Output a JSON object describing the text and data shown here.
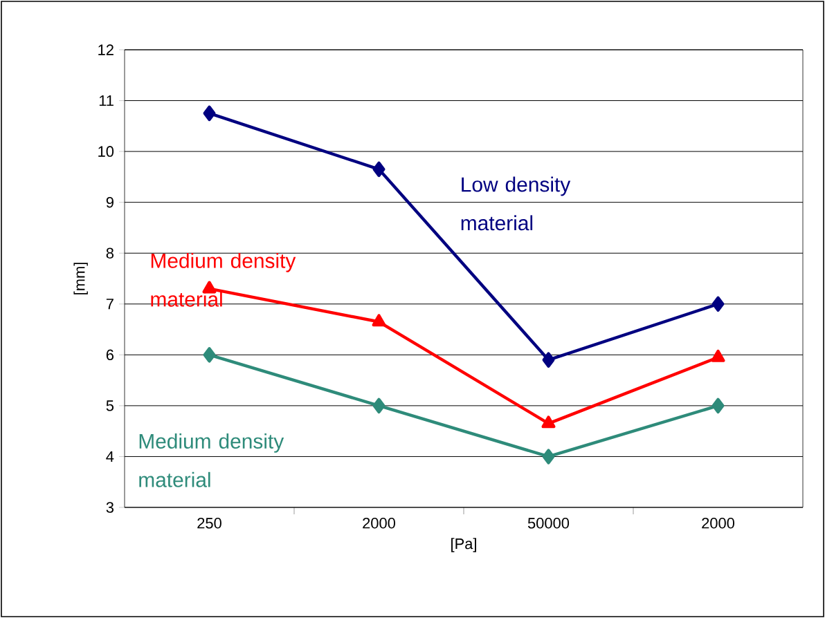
{
  "chart_data": {
    "type": "line",
    "xlabel": "[Pa]",
    "ylabel": "[mm]",
    "categories": [
      "250",
      "2000",
      "50000",
      "2000"
    ],
    "ylim": [
      3,
      12
    ],
    "yticks": [
      3,
      4,
      5,
      6,
      7,
      8,
      9,
      10,
      11,
      12
    ],
    "grid": "y",
    "series": [
      {
        "name": "Low  density material",
        "color": "#000080",
        "marker": "diamond",
        "values": [
          10.75,
          9.65,
          5.9,
          7.0
        ]
      },
      {
        "name": "Medium  density material",
        "color": "#ff0000",
        "marker": "triangle",
        "values": [
          7.3,
          6.65,
          4.65,
          5.95
        ]
      },
      {
        "name": "Medium  density material",
        "color": "#2e8b7a",
        "marker": "diamond",
        "values": [
          6,
          5,
          4,
          5
        ]
      }
    ]
  }
}
